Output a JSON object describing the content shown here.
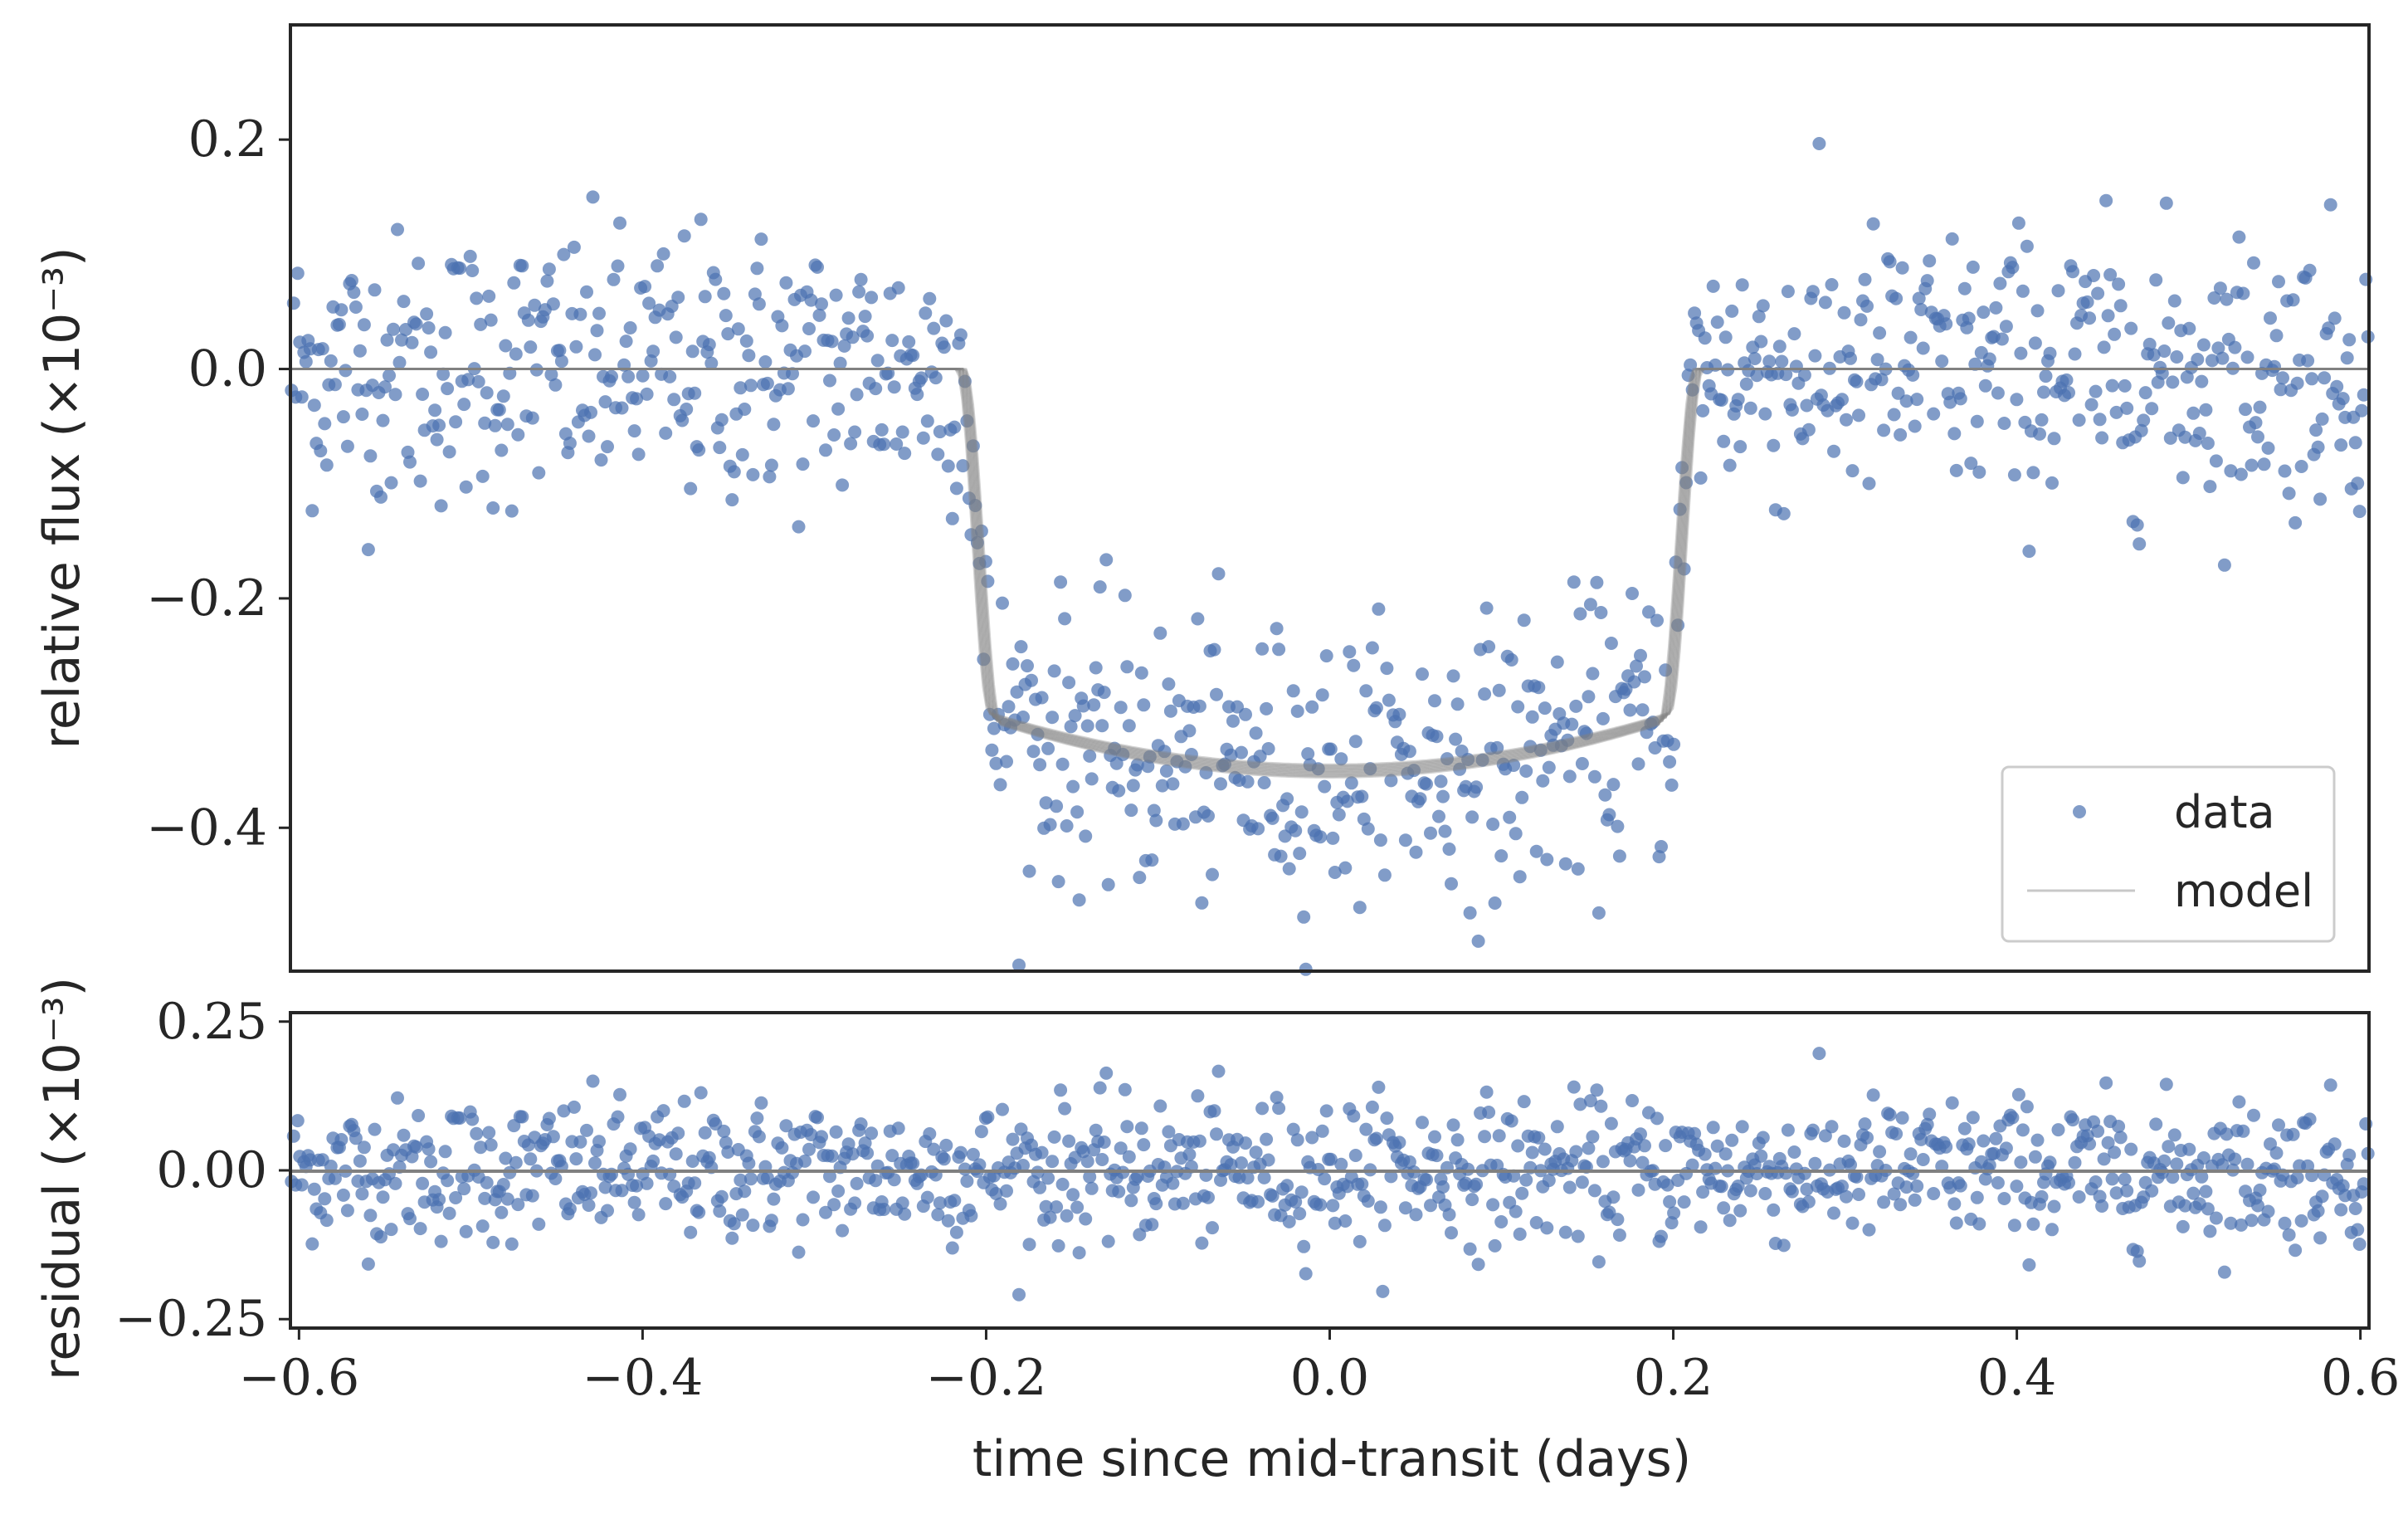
{
  "chart_data": [
    {
      "type": "scatter",
      "panel": "top",
      "xlabel": "",
      "ylabel": "relative flux (×10⁻³)",
      "xlim": [
        -0.605,
        0.605
      ],
      "ylim": [
        -0.525,
        0.3
      ],
      "yticks": [
        -0.4,
        -0.2,
        0.0,
        0.2
      ],
      "ytick_labels": [
        "−0.4",
        "−0.2",
        "0.0",
        "0.2"
      ],
      "grid": false,
      "legend": {
        "placement": "lower-right",
        "entries": [
          {
            "label": "data",
            "marker": "dot",
            "color": "#4c72b0"
          },
          {
            "label": "model",
            "marker": "line",
            "color": "#c8c8c8"
          }
        ]
      },
      "series": [
        {
          "name": "data",
          "kind": "scatter",
          "color": "#4c72b0",
          "alpha": 0.7,
          "n_points": 1000,
          "description_values": {
            "out_of_transit_mean": 0.0,
            "out_of_transit_scatter": 0.06,
            "in_transit_min": -0.35,
            "ingress_start": -0.215,
            "ingress_end": -0.195,
            "egress_start": 0.195,
            "egress_end": 0.215
          }
        },
        {
          "name": "model",
          "kind": "line",
          "color": "#808080",
          "n_samples": 12,
          "baseline": 0.0,
          "depth_at_center": -0.35,
          "t1": -0.215,
          "t2": -0.195,
          "t3": 0.195,
          "t4": 0.215
        }
      ]
    },
    {
      "type": "scatter",
      "panel": "bottom",
      "xlabel": "time since mid-transit (days)",
      "ylabel": "residual (×10⁻³)",
      "xlim": [
        -0.605,
        0.605
      ],
      "ylim": [
        -0.265,
        0.265
      ],
      "xticks": [
        -0.6,
        -0.4,
        -0.2,
        0.0,
        0.2,
        0.4,
        0.6
      ],
      "xtick_labels": [
        "−0.6",
        "−0.4",
        "−0.2",
        "0.0",
        "0.2",
        "0.4",
        "0.6"
      ],
      "yticks": [
        -0.25,
        0.0,
        0.25
      ],
      "ytick_labels": [
        "−0.25",
        "0.00",
        "0.25"
      ],
      "grid": false,
      "series": [
        {
          "name": "residual",
          "kind": "scatter",
          "color": "#4c72b0",
          "alpha": 0.7,
          "mean": 0.0,
          "scatter": 0.06
        },
        {
          "name": "zero",
          "kind": "line",
          "color": "#808080",
          "value": 0.0
        }
      ]
    }
  ],
  "colors": {
    "data": "#4c72b0",
    "model": "#808080",
    "legend_model": "#c8c8c8",
    "axes": "#262626"
  }
}
